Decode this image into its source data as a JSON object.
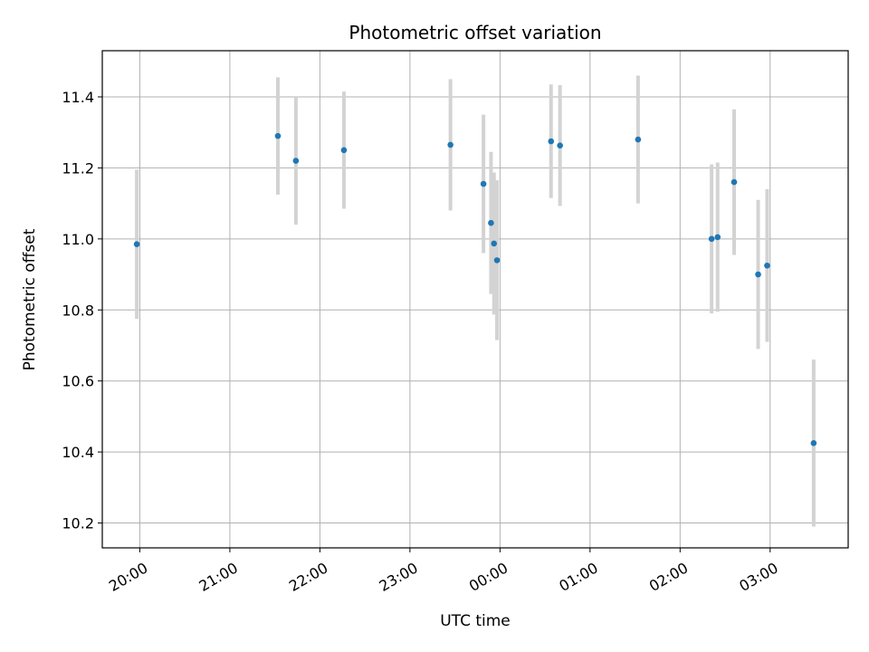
{
  "chart_data": {
    "type": "scatter",
    "title": "Photometric offset variation",
    "xlabel": "UTC time",
    "ylabel": "Photometric offset",
    "grid": true,
    "x_is_time_of_day": true,
    "xlim": [
      "19:35",
      "03:52"
    ],
    "ylim": [
      10.13,
      11.53
    ],
    "xticks": [
      "20:00",
      "21:00",
      "22:00",
      "23:00",
      "00:00",
      "01:00",
      "02:00",
      "03:00"
    ],
    "yticks": [
      10.2,
      10.4,
      10.6,
      10.8,
      11.0,
      11.2,
      11.4
    ],
    "ytick_labels": [
      "10.2",
      "10.4",
      "10.6",
      "10.8",
      "11.0",
      "11.2",
      "11.4"
    ],
    "point_color": "#1f77b4",
    "errorbar_color": "#d3d3d3",
    "series": [
      {
        "x": [
          "19:58",
          "21:32",
          "21:44",
          "22:16",
          "23:27",
          "23:49",
          "23:54",
          "23:56",
          "23:58",
          "00:34",
          "00:40",
          "01:32",
          "02:21",
          "02:25",
          "02:36",
          "02:52",
          "02:58",
          "03:29"
        ],
        "y": [
          10.985,
          11.29,
          11.22,
          11.25,
          11.265,
          11.155,
          11.045,
          10.987,
          10.94,
          11.275,
          11.263,
          11.28,
          11.0,
          11.005,
          11.16,
          10.9,
          10.925,
          10.425
        ],
        "yerr": [
          0.21,
          0.165,
          0.18,
          0.165,
          0.185,
          0.195,
          0.2,
          0.2,
          0.225,
          0.16,
          0.17,
          0.18,
          0.21,
          0.21,
          0.205,
          0.21,
          0.215,
          0.235
        ]
      }
    ]
  }
}
